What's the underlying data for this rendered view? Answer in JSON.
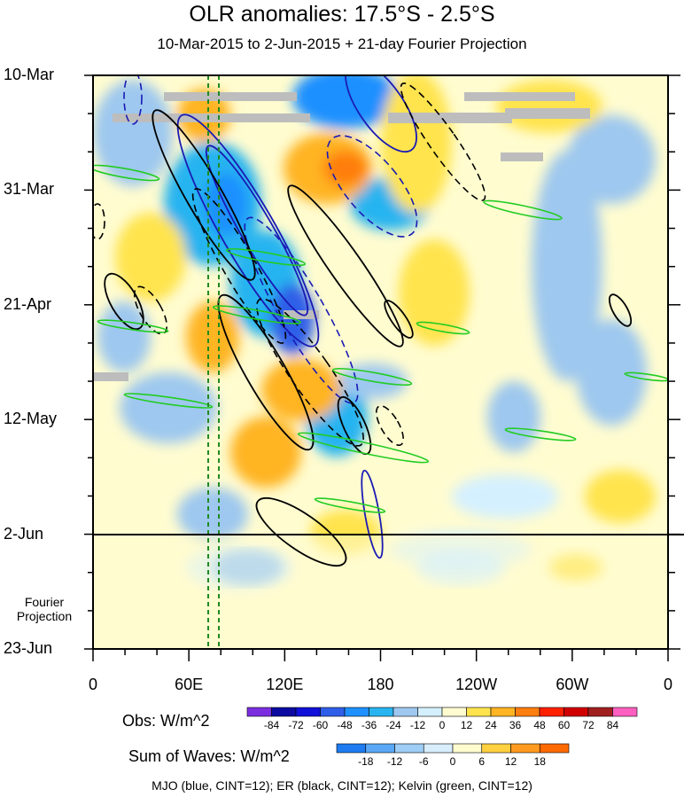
{
  "title": "OLR anomalies: 17.5°S - 2.5°S",
  "subtitle": "10-Mar-2015 to 2-Jun-2015 + 21-day Fourier Projection",
  "chart_data": {
    "type": "heatmap",
    "title": "OLR anomalies: 17.5°S - 2.5°S",
    "subtitle": "10-Mar-2015 to 2-Jun-2015 + 21-day Fourier Projection",
    "x_ticks": [
      "0",
      "60E",
      "120E",
      "180",
      "120W",
      "60W",
      "0"
    ],
    "y_ticks": [
      "10-Mar",
      "31-Mar",
      "21-Apr",
      "12-May",
      "2-Jun",
      "23-Jun"
    ],
    "projection_label": "Fourier Projection",
    "obs_colorbar": {
      "title": "Obs: W/m^2",
      "levels": [
        -84,
        -72,
        -60,
        -48,
        -36,
        -24,
        -12,
        0,
        12,
        24,
        36,
        48,
        60,
        72,
        84
      ],
      "colors": [
        "#7b2ee0",
        "#0c0aa0",
        "#1010d8",
        "#2f5ee8",
        "#1e90ff",
        "#28b4f0",
        "#9ec8ef",
        "#d4f0ff",
        "#fffcd0",
        "#ffe44e",
        "#ffb423",
        "#ff7e10",
        "#ff2000",
        "#d00000",
        "#a02020",
        "#ff60c0"
      ]
    },
    "waves_colorbar": {
      "title": "Sum of Waves: W/m^2",
      "levels": [
        -18,
        -12,
        -6,
        0,
        6,
        12,
        18
      ],
      "colors": [
        "#1e7cf0",
        "#5aa8f5",
        "#9ecdf5",
        "#d8eefc",
        "#fffcd0",
        "#ffd040",
        "#ff9a20",
        "#ff6a00"
      ]
    },
    "footer": "MJO (blue, CINT=12); ER (black, CINT=12); Kelvin (green, CINT=12)"
  }
}
